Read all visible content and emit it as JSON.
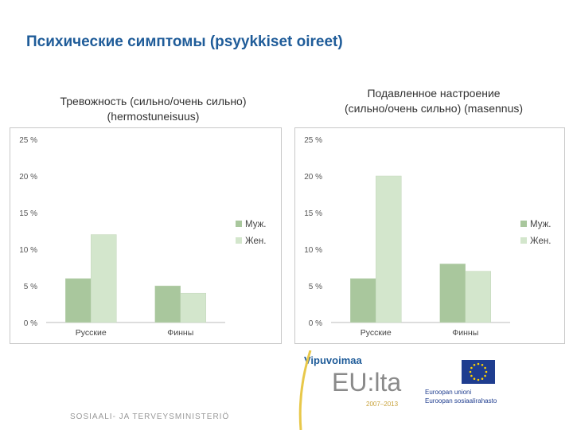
{
  "page": {
    "title": "Психические симптомы (psyykkiset oireet)",
    "footer": "SOSIAALI- JA TERVEYSMINISTERIÖ"
  },
  "logos": {
    "vipuvoimaa": "Vipuvoimaa",
    "eulta": "EU:lta",
    "years": "2007–2013",
    "eu_line1": "Euroopan unioni",
    "eu_line2": "Euroopan sosiaalirahasto"
  },
  "colors": {
    "men": "#a9c79d",
    "women": "#d3e6cc",
    "title": "#1f5c99"
  },
  "chart_data": [
    {
      "type": "bar",
      "title_line1": "Тревожность (сильно/очень сильно)",
      "title_line2": "(hermostuneisuus)",
      "categories": [
        "Русские",
        "Финны"
      ],
      "series": [
        {
          "name": "Муж.",
          "values": [
            6,
            5
          ]
        },
        {
          "name": "Жен.",
          "values": [
            12,
            4
          ]
        }
      ],
      "ylim": [
        0,
        25
      ],
      "yticks": [
        "0 %",
        "5 %",
        "10 %",
        "15 %",
        "20 %",
        "25 %"
      ],
      "grid": false,
      "legend": "right"
    },
    {
      "type": "bar",
      "title_line1": "Подавленное настроение",
      "title_line2": "(сильно/очень сильно)  (masennus)",
      "categories": [
        "Русские",
        "Финны"
      ],
      "series": [
        {
          "name": "Муж.",
          "values": [
            6,
            8
          ]
        },
        {
          "name": "Жен.",
          "values": [
            20,
            7
          ]
        }
      ],
      "ylim": [
        0,
        25
      ],
      "yticks": [
        "0 %",
        "5 %",
        "10 %",
        "15 %",
        "20 %",
        "25 %"
      ],
      "grid": false,
      "legend": "right"
    }
  ]
}
